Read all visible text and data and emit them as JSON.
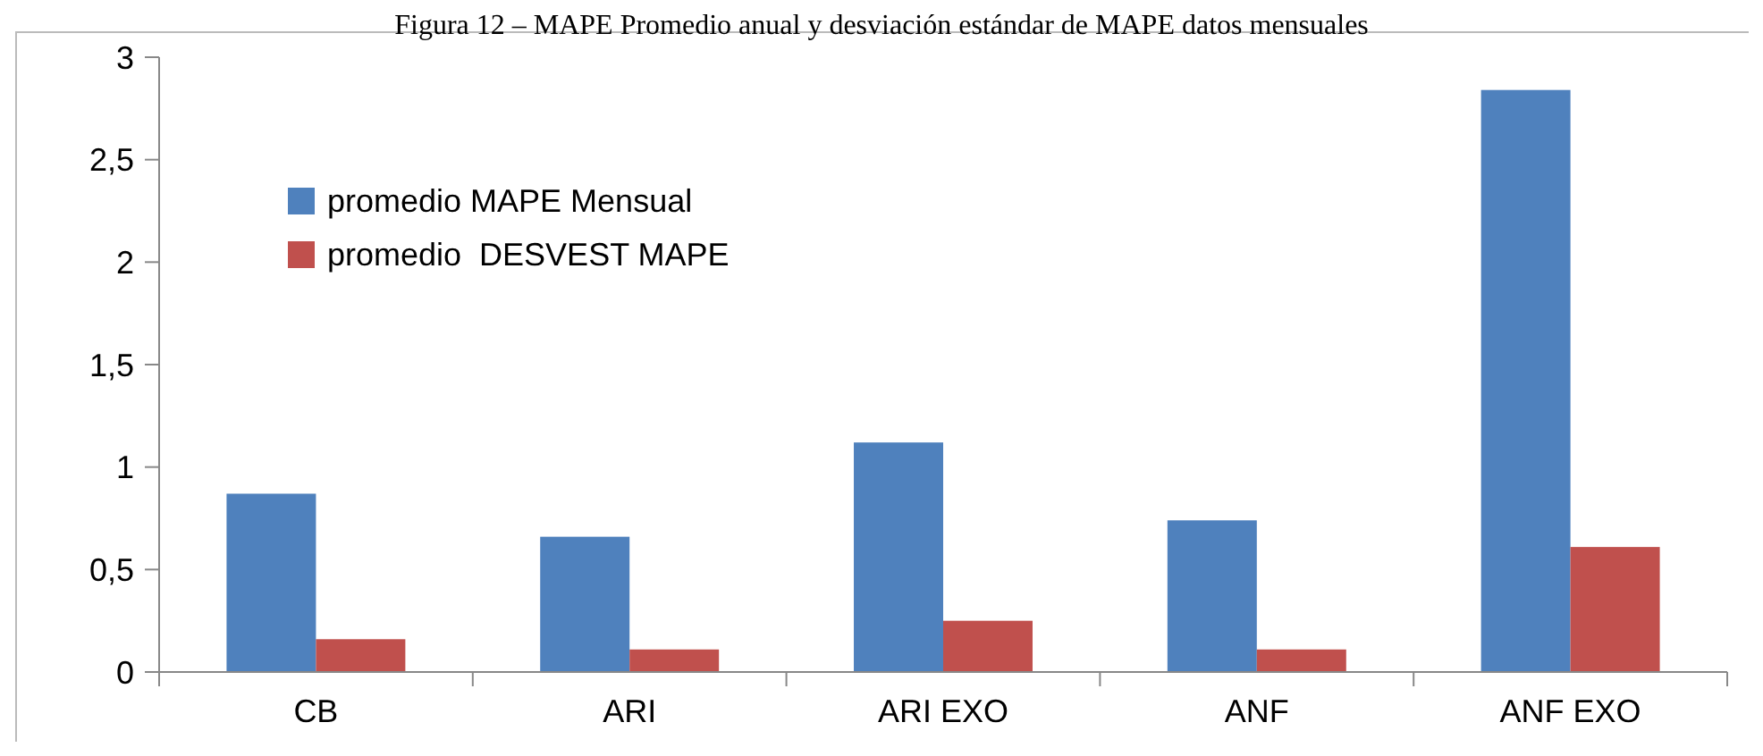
{
  "chart_data": {
    "type": "bar",
    "title": "Figura 12 – MAPE Promedio anual y desviación estándar de MAPE datos mensuales",
    "categories": [
      "CB",
      "ARI",
      "ARI EXO",
      "ANF",
      "ANF EXO"
    ],
    "series": [
      {
        "name": "promedio MAPE Mensual",
        "color": "#4f81bd",
        "values": [
          0.87,
          0.66,
          1.12,
          0.74,
          2.84
        ]
      },
      {
        "name": "promedio  DESVEST MAPE",
        "color": "#c0504d",
        "values": [
          0.16,
          0.11,
          0.25,
          0.11,
          0.61
        ]
      }
    ],
    "ylim": [
      0,
      3
    ],
    "yticks": [
      {
        "value": 0,
        "label": "0"
      },
      {
        "value": 0.5,
        "label": "0,5"
      },
      {
        "value": 1,
        "label": "1"
      },
      {
        "value": 1.5,
        "label": "1,5"
      },
      {
        "value": 2,
        "label": "2"
      },
      {
        "value": 2.5,
        "label": "2,5"
      },
      {
        "value": 3,
        "label": "3"
      }
    ],
    "grid": false,
    "legend": "top left"
  }
}
